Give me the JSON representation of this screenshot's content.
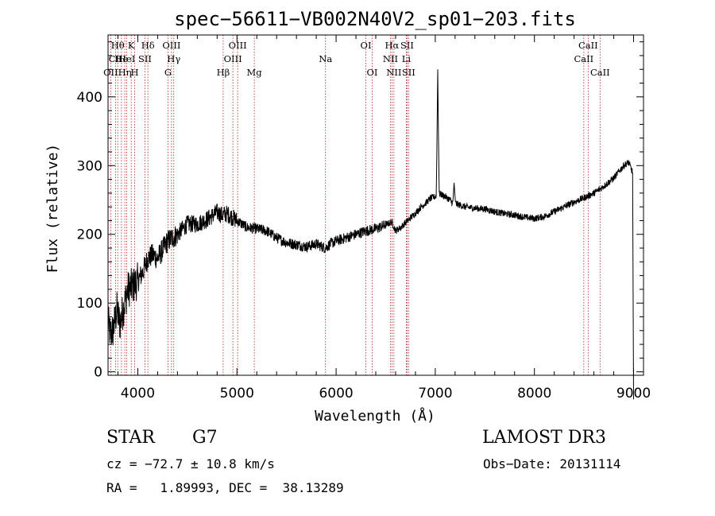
{
  "chart_data": {
    "type": "line",
    "title": "spec−56611−VB002N40V2_sp01−203.fits",
    "xlabel": "Wavelength (Å)",
    "ylabel": "Flux (relative)",
    "xlim": [
      3700,
      9100
    ],
    "ylim": [
      -5,
      490
    ],
    "xticks": [
      4000,
      5000,
      6000,
      7000,
      8000,
      9000
    ],
    "yticks": [
      0,
      100,
      200,
      300,
      400
    ],
    "grid": false,
    "spectrum_anchors": {
      "x": [
        3700,
        3720,
        3750,
        3790,
        3820,
        3860,
        3900,
        3950,
        4000,
        4050,
        4100,
        4150,
        4200,
        4300,
        4400,
        4500,
        4600,
        4700,
        4800,
        4850,
        4900,
        5000,
        5100,
        5200,
        5300,
        5400,
        5500,
        5600,
        5700,
        5800,
        5890,
        5950,
        6000,
        6100,
        6200,
        6300,
        6400,
        6500,
        6563,
        6600,
        6650,
        6700,
        6750,
        6800,
        6850,
        6900,
        6950,
        7000,
        7030,
        7060,
        7100,
        7150,
        7180,
        7200,
        7300,
        7400,
        7500,
        7600,
        7700,
        7800,
        7900,
        8000,
        8100,
        8200,
        8300,
        8400,
        8500,
        8600,
        8700,
        8800,
        8900,
        8950,
        8990,
        9000
      ],
      "y": [
        75,
        55,
        60,
        90,
        70,
        95,
        120,
        125,
        132,
        145,
        165,
        170,
        165,
        190,
        200,
        215,
        215,
        222,
        232,
        228,
        230,
        220,
        210,
        208,
        205,
        195,
        188,
        185,
        182,
        186,
        180,
        187,
        190,
        195,
        200,
        205,
        208,
        214,
        218,
        205,
        210,
        217,
        224,
        231,
        239,
        245,
        252,
        255,
        260,
        258,
        255,
        250,
        245,
        245,
        240,
        238,
        237,
        233,
        230,
        228,
        225,
        223,
        226,
        233,
        240,
        247,
        253,
        260,
        270,
        282,
        300,
        305,
        290,
        80
      ]
    },
    "emission_peaks": [
      {
        "x": 7025,
        "y": 440
      },
      {
        "x": 7190,
        "y": 275
      }
    ],
    "spectral_lines": [
      {
        "label": "Hθ",
        "x": 3798,
        "row": 1
      },
      {
        "label": "CII",
        "x": 3777,
        "row": 2
      },
      {
        "label": "OII",
        "x": 3727,
        "row": 3
      },
      {
        "label": "He",
        "x": 3835,
        "row": 2
      },
      {
        "label": "Hη",
        "x": 3869,
        "row": 3
      },
      {
        "label": "K",
        "x": 3934,
        "row": 1
      },
      {
        "label": "HeI",
        "x": 3889,
        "row": 2
      },
      {
        "label": "H",
        "x": 3969,
        "row": 3
      },
      {
        "label": "Hδ",
        "x": 4102,
        "row": 1
      },
      {
        "label": "SII",
        "x": 4072,
        "row": 2
      },
      {
        "label": "OIII",
        "x": 4340,
        "row": 1
      },
      {
        "label": "Hγ",
        "x": 4363,
        "row": 2
      },
      {
        "label": "G",
        "x": 4305,
        "row": 3
      },
      {
        "label": "Hβ",
        "x": 4861,
        "row": 3
      },
      {
        "label": "OIII",
        "x": 5007,
        "row": 1
      },
      {
        "label": "OIII",
        "x": 4959,
        "row": 2
      },
      {
        "label": "Mg",
        "x": 5175,
        "row": 3
      },
      {
        "label": "Na",
        "x": 5893,
        "row": 2
      },
      {
        "label": "OI",
        "x": 6300,
        "row": 1
      },
      {
        "label": "OI",
        "x": 6364,
        "row": 3
      },
      {
        "label": "Hα",
        "x": 6563,
        "row": 1
      },
      {
        "label": "NII",
        "x": 6548,
        "row": 2
      },
      {
        "label": "NII",
        "x": 6583,
        "row": 3
      },
      {
        "label": "SII",
        "x": 6716,
        "row": 1
      },
      {
        "label": "Li",
        "x": 6708,
        "row": 2
      },
      {
        "label": "SII",
        "x": 6731,
        "row": 3
      },
      {
        "label": "CaII",
        "x": 8542,
        "row": 1
      },
      {
        "label": "CaII",
        "x": 8498,
        "row": 2
      },
      {
        "label": "CaII",
        "x": 8662,
        "row": 3
      }
    ]
  },
  "info": {
    "class_label": "STAR",
    "subclass_label": "G7",
    "survey": "LAMOST DR3",
    "cz_line": "cz = −72.7 ± 10.8 km/s",
    "obs_date_line": "Obs−Date: 20131114",
    "radec_line": "RA =   1.89993, DEC =  38.13289"
  },
  "colors": {
    "line_marker": "#b22222",
    "spectrum": "#000000"
  }
}
